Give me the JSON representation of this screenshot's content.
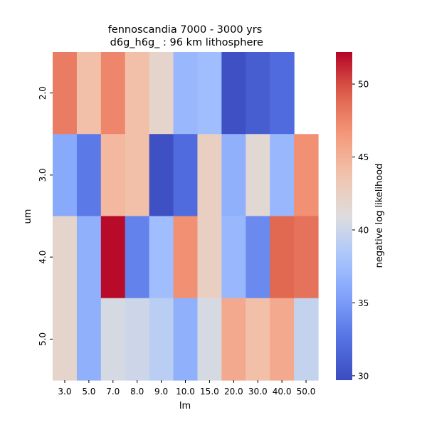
{
  "chart_data": {
    "type": "heatmap",
    "title_line1": "fennoscandia 7000 - 3000 yrs",
    "title_line2": " d6g_h6g_ : 96 km lithosphere",
    "xlabel": "lm",
    "ylabel": "um",
    "x_categories": [
      "3.0",
      "5.0",
      "7.0",
      "8.0",
      "9.0",
      "10.0",
      "15.0",
      "20.0",
      "30.0",
      "40.0",
      "50.0"
    ],
    "y_categories": [
      "2.0",
      "3.0",
      "4.0",
      "5.0"
    ],
    "values": [
      [
        48.0,
        44.0,
        47.5,
        44.0,
        42.0,
        37.0,
        37.5,
        30.0,
        31.0,
        32.0,
        null
      ],
      [
        36.0,
        33.0,
        44.5,
        44.0,
        30.0,
        32.0,
        42.5,
        36.5,
        41.5,
        37.0,
        47.0
      ],
      [
        42.0,
        36.5,
        52.0,
        33.5,
        37.5,
        47.0,
        42.5,
        37.0,
        34.0,
        49.0,
        48.5
      ],
      [
        42.0,
        36.5,
        40.5,
        40.0,
        39.0,
        36.5,
        40.5,
        45.5,
        44.0,
        45.5,
        39.5
      ]
    ],
    "colorbar": {
      "label": "negative log likelihood",
      "min": 29.7,
      "max": 52.2,
      "ticks": [
        30,
        35,
        40,
        45,
        50
      ],
      "colormap": "coolwarm",
      "low_color": "#3b4cc0",
      "mid_color": "#dddddd",
      "high_color": "#b40426"
    }
  }
}
